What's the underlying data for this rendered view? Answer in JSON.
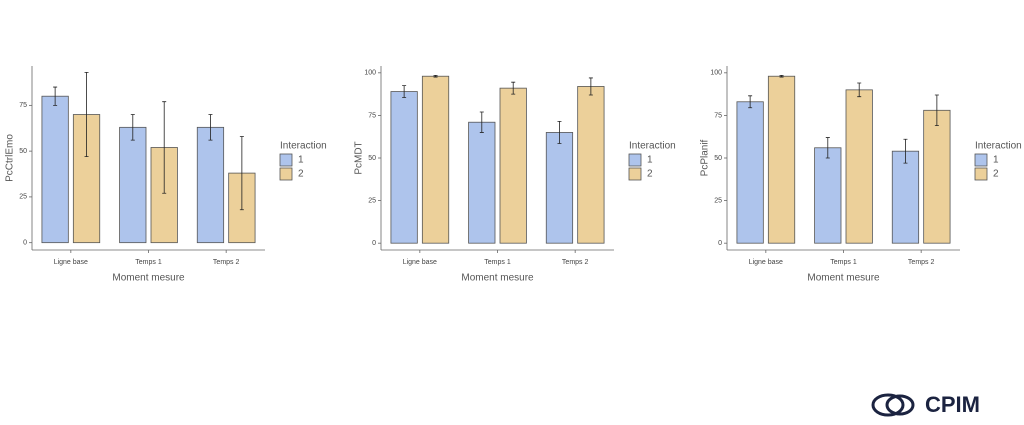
{
  "chart_data": [
    {
      "type": "bar",
      "y_label": "PcCtrlEmo",
      "x_label": "Moment mesure",
      "legend_title": "Interaction",
      "categories": [
        "Ligne base",
        "Temps 1",
        "Temps 2"
      ],
      "series": [
        {
          "name": "1",
          "color": "#aec4ec",
          "values": [
            80,
            63,
            63
          ],
          "errors": [
            5,
            7,
            7
          ]
        },
        {
          "name": "2",
          "color": "#ecd09a",
          "values": [
            70,
            52,
            38
          ],
          "errors": [
            23,
            25,
            20
          ]
        }
      ],
      "ylim": [
        -4,
        96.5
      ],
      "yticks": [
        0,
        25,
        50,
        75
      ]
    },
    {
      "type": "bar",
      "y_label": "PcMDT",
      "x_label": "Moment mesure",
      "legend_title": "Interaction",
      "categories": [
        "Ligne base",
        "Temps 1",
        "Temps 2"
      ],
      "series": [
        {
          "name": "1",
          "color": "#aec4ec",
          "values": [
            89,
            71,
            65
          ],
          "errors": [
            3.5,
            6,
            6.5
          ]
        },
        {
          "name": "2",
          "color": "#ecd09a",
          "values": [
            98,
            91,
            92
          ],
          "errors": [
            0.5,
            3.5,
            5
          ]
        }
      ],
      "ylim": [
        -4,
        104
      ],
      "yticks": [
        0,
        25,
        50,
        75,
        100
      ]
    },
    {
      "type": "bar",
      "y_label": "PcPlanif",
      "x_label": "Moment mesure",
      "legend_title": "Interaction",
      "categories": [
        "Ligne base",
        "Temps 1",
        "Temps 2"
      ],
      "series": [
        {
          "name": "1",
          "color": "#aec4ec",
          "values": [
            83,
            56,
            54
          ],
          "errors": [
            3.5,
            6,
            7
          ]
        },
        {
          "name": "2",
          "color": "#ecd09a",
          "values": [
            98,
            90,
            78
          ],
          "errors": [
            0.5,
            4,
            9
          ]
        }
      ],
      "ylim": [
        -4,
        104
      ],
      "yticks": [
        0,
        25,
        50,
        75,
        100
      ]
    }
  ],
  "logo": "CPIM"
}
